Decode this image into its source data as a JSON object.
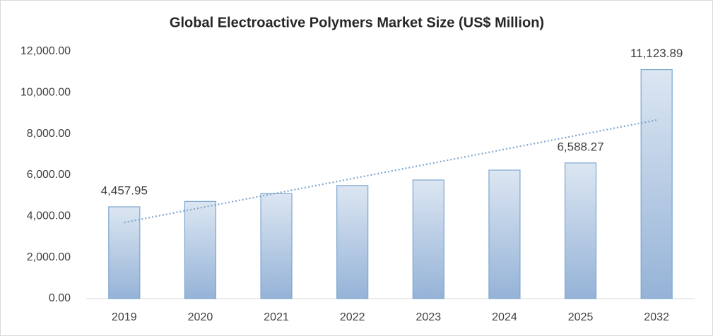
{
  "chart_data": {
    "type": "bar",
    "title": "Global Electroactive Polymers Market Size (US$ Million)",
    "categories": [
      "2019",
      "2020",
      "2021",
      "2022",
      "2023",
      "2024",
      "2025",
      "2032"
    ],
    "values": [
      4457.95,
      4720,
      5100,
      5490,
      5760,
      6240,
      6588.27,
      11123.89
    ],
    "value_labels": [
      "4,457.95",
      null,
      null,
      null,
      null,
      null,
      "6,588.27",
      "11,123.89"
    ],
    "color": "#95b3d7",
    "ylim": [
      0,
      12000
    ],
    "yticks": [
      {
        "value": 0,
        "label": "0.00"
      },
      {
        "value": 2000,
        "label": "2,000.00"
      },
      {
        "value": 4000,
        "label": "4,000.00"
      },
      {
        "value": 6000,
        "label": "6,000.00"
      },
      {
        "value": 8000,
        "label": "8,000.00"
      },
      {
        "value": 10000,
        "label": "10,000.00"
      },
      {
        "value": 12000,
        "label": "12,000.00"
      }
    ],
    "grid": false,
    "trendline": true
  }
}
